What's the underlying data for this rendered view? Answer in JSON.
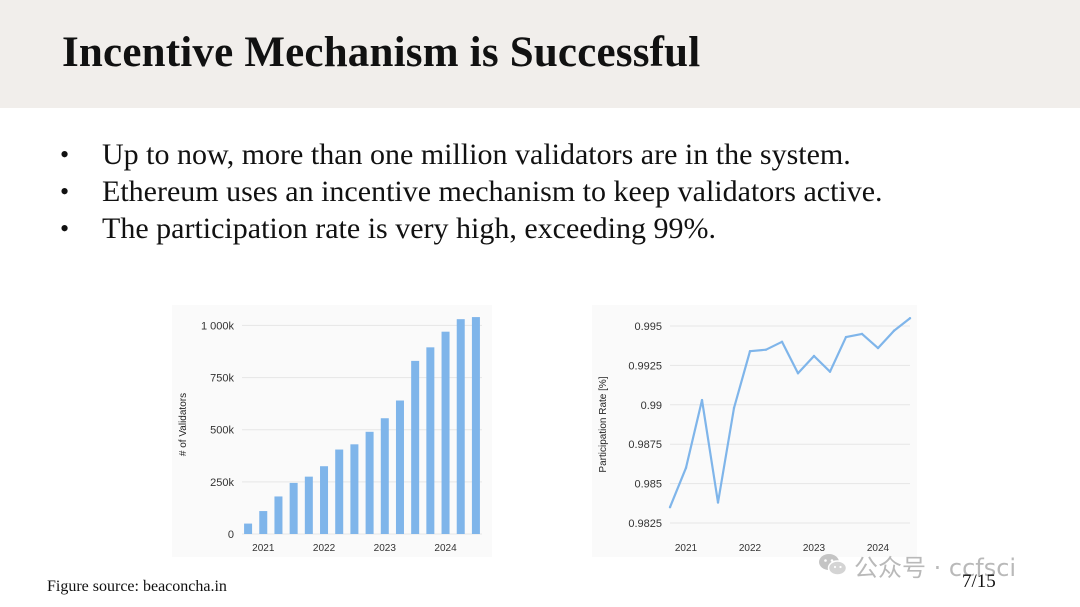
{
  "slide": {
    "title": "Incentive Mechanism is Successful",
    "bullet_symbol": "•",
    "bullets": [
      "Up to now, more than one million validators are in the system.",
      "Ethereum uses an incentive mechanism to keep validators active.",
      "The participation rate is very high, exceeding 99%."
    ],
    "figure_source": "Figure source: beaconcha.in",
    "page_number": "7/15",
    "watermark": "公众号 · ccfsci"
  },
  "colors": {
    "title_bar": "#f1eeeb",
    "series": "#7fb5ea",
    "grid": "#e6e6e6",
    "chart_bg": "#fafafa"
  },
  "chart_data": [
    {
      "type": "bar",
      "ylabel": "# of Validators",
      "xlabel": "",
      "ylim": [
        0,
        1050000
      ],
      "yticks": [
        0,
        250000,
        500000,
        750000,
        1000000
      ],
      "ytick_labels": [
        "0",
        "250k",
        "500k",
        "750k",
        "1 000k"
      ],
      "x_tick_labels": [
        "2021",
        "2022",
        "2023",
        "2024"
      ],
      "x_tick_positions": [
        2021.0,
        2022.0,
        2023.0,
        2024.0
      ],
      "x": [
        2020.75,
        2021.0,
        2021.25,
        2021.5,
        2021.75,
        2022.0,
        2022.25,
        2022.5,
        2022.75,
        2023.0,
        2023.25,
        2023.5,
        2023.75,
        2024.0,
        2024.25,
        2024.5
      ],
      "values": [
        50000,
        110000,
        180000,
        245000,
        275000,
        325000,
        405000,
        430000,
        490000,
        555000,
        640000,
        830000,
        895000,
        970000,
        1030000,
        1040000
      ],
      "grid": true,
      "legend": "none"
    },
    {
      "type": "line",
      "ylabel": "Participation Rate [%]",
      "xlabel": "",
      "ylim": [
        0.9818,
        0.9957
      ],
      "yticks": [
        0.9825,
        0.985,
        0.9875,
        0.99,
        0.9925,
        0.995
      ],
      "ytick_labels": [
        "0.9825",
        "0.985",
        "0.9875",
        "0.99",
        "0.9925",
        "0.995"
      ],
      "x_tick_labels": [
        "2021",
        "2022",
        "2023",
        "2024"
      ],
      "x_tick_positions": [
        2021.0,
        2022.0,
        2023.0,
        2024.0
      ],
      "x": [
        2020.75,
        2021.0,
        2021.25,
        2021.5,
        2021.75,
        2022.0,
        2022.25,
        2022.5,
        2022.75,
        2023.0,
        2023.25,
        2023.5,
        2023.75,
        2024.0,
        2024.25,
        2024.5
      ],
      "values": [
        0.9835,
        0.986,
        0.9903,
        0.9838,
        0.9898,
        0.9934,
        0.9935,
        0.994,
        0.992,
        0.9931,
        0.9921,
        0.9943,
        0.9945,
        0.9936,
        0.9947,
        0.9955
      ],
      "grid": true,
      "legend": "none"
    }
  ]
}
